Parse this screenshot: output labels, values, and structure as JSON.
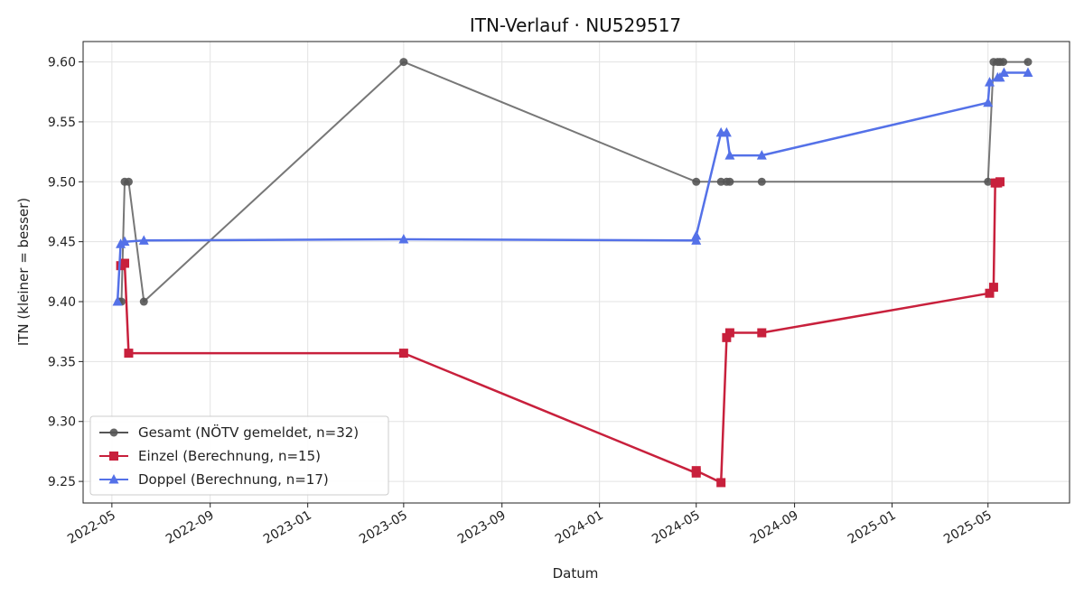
{
  "chart_data": {
    "type": "line",
    "title": "ITN-Verlauf · NU529517",
    "xlabel": "Datum",
    "ylabel": "ITN  (kleiner = besser)",
    "x_axis_type": "date",
    "xlim": [
      "2022-03-26",
      "2025-08-11"
    ],
    "ylim": [
      9.232,
      9.617
    ],
    "x_ticks": [
      "2022-05-01",
      "2022-09-01",
      "2023-01-01",
      "2023-05-01",
      "2023-09-01",
      "2024-01-01",
      "2024-05-01",
      "2024-09-01",
      "2025-01-01",
      "2025-05-01"
    ],
    "x_tick_labels": [
      "2022-05",
      "2022-09",
      "2023-01",
      "2023-05",
      "2023-09",
      "2024-01",
      "2024-05",
      "2024-09",
      "2025-01",
      "2025-05"
    ],
    "y_ticks": [
      9.25,
      9.3,
      9.35,
      9.4,
      9.45,
      9.5,
      9.55,
      9.6
    ],
    "y_tick_labels": [
      "9.25",
      "9.30",
      "9.35",
      "9.40",
      "9.45",
      "9.50",
      "9.55",
      "9.60"
    ],
    "grid": true,
    "legend_position": "lower-left",
    "series": [
      {
        "name": "Gesamt (NÖTV gemeldet, n=32)",
        "color": "#555555",
        "marker": "circle",
        "points": [
          [
            "2022-05-10",
            9.4
          ],
          [
            "2022-05-13",
            9.4
          ],
          [
            "2022-05-17",
            9.5
          ],
          [
            "2022-05-22",
            9.5
          ],
          [
            "2022-06-10",
            9.4
          ],
          [
            "2023-05-01",
            9.6
          ],
          [
            "2024-05-01",
            9.5
          ],
          [
            "2024-06-01",
            9.5
          ],
          [
            "2024-06-08",
            9.5
          ],
          [
            "2024-06-12",
            9.5
          ],
          [
            "2024-07-22",
            9.5
          ],
          [
            "2025-05-01",
            9.5
          ],
          [
            "2025-05-08",
            9.6
          ],
          [
            "2025-05-13",
            9.6
          ],
          [
            "2025-05-16",
            9.6
          ],
          [
            "2025-05-20",
            9.6
          ],
          [
            "2025-06-20",
            9.6
          ]
        ]
      },
      {
        "name": "Einzel (Berechnung, n=15)",
        "color": "#c8203c",
        "marker": "square",
        "points": [
          [
            "2022-05-12",
            9.43
          ],
          [
            "2022-05-17",
            9.432
          ],
          [
            "2022-05-22",
            9.357
          ],
          [
            "2023-05-01",
            9.357
          ],
          [
            "2024-05-01",
            9.257
          ],
          [
            "2024-05-01",
            9.259
          ],
          [
            "2024-06-01",
            9.249
          ],
          [
            "2024-06-08",
            9.37
          ],
          [
            "2024-06-12",
            9.374
          ],
          [
            "2024-07-22",
            9.374
          ],
          [
            "2025-05-03",
            9.407
          ],
          [
            "2025-05-08",
            9.412
          ],
          [
            "2025-05-10",
            9.499
          ],
          [
            "2025-05-13",
            9.499
          ],
          [
            "2025-05-16",
            9.5
          ]
        ]
      },
      {
        "name": "Doppel (Berechnung, n=17)",
        "color": "#5471e8",
        "marker": "triangle",
        "points": [
          [
            "2022-05-08",
            9.4
          ],
          [
            "2022-05-12",
            9.448
          ],
          [
            "2022-05-17",
            9.45
          ],
          [
            "2022-06-10",
            9.451
          ],
          [
            "2023-05-01",
            9.452
          ],
          [
            "2024-05-01",
            9.451
          ],
          [
            "2024-05-01",
            9.455
          ],
          [
            "2024-06-01",
            9.541
          ],
          [
            "2024-06-08",
            9.541
          ],
          [
            "2024-06-12",
            9.522
          ],
          [
            "2024-07-22",
            9.522
          ],
          [
            "2025-05-01",
            9.566
          ],
          [
            "2025-05-03",
            9.583
          ],
          [
            "2025-05-13",
            9.587
          ],
          [
            "2025-05-16",
            9.587
          ],
          [
            "2025-05-21",
            9.591
          ],
          [
            "2025-06-20",
            9.591
          ]
        ]
      }
    ]
  }
}
